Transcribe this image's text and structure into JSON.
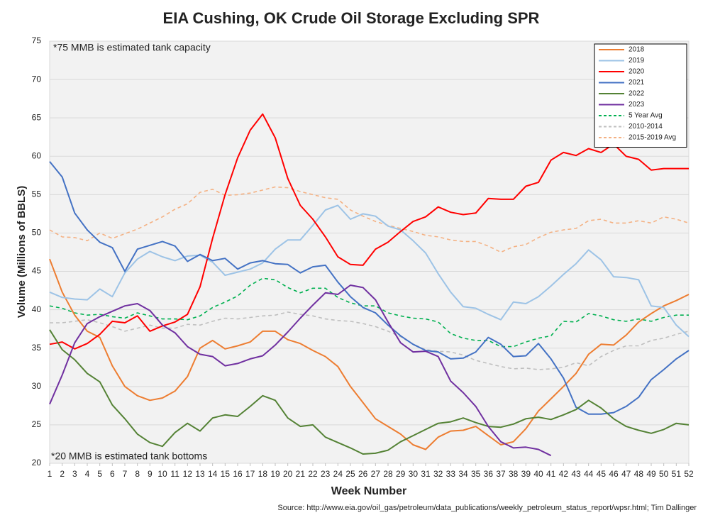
{
  "chart_data": {
    "type": "line",
    "title": "EIA Cushing, OK Crude Oil Storage Excluding SPR",
    "y_label": "Volume (Millions of BBLS)",
    "x_label": "Week Number",
    "source": "Source: http://www.eia.gov/oil_gas/petroleum/data_publications/weekly_petroleum_status_report/wpsr.html; Tim Dallinger",
    "annotations": [
      "*75 MMB is estimated tank capacity",
      "*20 MMB is estimated tank bottoms"
    ],
    "legend": "upper right",
    "grid": true,
    "x": [
      1,
      2,
      3,
      4,
      5,
      6,
      7,
      8,
      9,
      10,
      11,
      12,
      13,
      14,
      15,
      16,
      17,
      18,
      19,
      20,
      21,
      22,
      23,
      24,
      25,
      26,
      27,
      28,
      29,
      30,
      31,
      32,
      33,
      34,
      35,
      36,
      37,
      38,
      39,
      40,
      41,
      42,
      43,
      44,
      45,
      46,
      47,
      48,
      49,
      50,
      51,
      52
    ],
    "xlim": [
      1,
      52
    ],
    "xticks": [
      1,
      2,
      3,
      4,
      5,
      6,
      7,
      8,
      9,
      10,
      11,
      12,
      13,
      14,
      15,
      16,
      17,
      18,
      19,
      20,
      21,
      22,
      23,
      24,
      25,
      26,
      27,
      28,
      29,
      30,
      31,
      32,
      33,
      34,
      35,
      36,
      37,
      38,
      39,
      40,
      41,
      42,
      43,
      44,
      45,
      46,
      47,
      48,
      49,
      50,
      51,
      52
    ],
    "ylim": [
      20,
      75
    ],
    "yticks": [
      20,
      25,
      30,
      35,
      40,
      45,
      50,
      55,
      60,
      65,
      70,
      75
    ],
    "series": [
      {
        "name": "2018",
        "color": "#ed7d31",
        "dash": false,
        "values": [
          46.6,
          42.3,
          39.3,
          37.2,
          36.4,
          32.7,
          30.0,
          28.8,
          28.2,
          28.5,
          29.4,
          31.3,
          35.0,
          36.0,
          34.9,
          35.3,
          35.8,
          37.2,
          37.2,
          36.1,
          35.6,
          34.7,
          33.9,
          32.6,
          30.0,
          27.9,
          25.8,
          24.8,
          23.8,
          22.4,
          21.8,
          23.4,
          24.2,
          24.3,
          24.8,
          23.6,
          22.4,
          22.8,
          24.5,
          26.8,
          28.4,
          30.0,
          31.7,
          34.2,
          35.5,
          35.4,
          36.7,
          38.4,
          39.5,
          40.5,
          41.2,
          42.0
        ]
      },
      {
        "name": "2019",
        "color": "#9dc3e6",
        "dash": false,
        "values": [
          42.3,
          41.6,
          41.4,
          41.3,
          42.7,
          41.7,
          44.8,
          46.6,
          47.6,
          46.9,
          46.4,
          47.0,
          47.1,
          46.2,
          44.5,
          44.9,
          45.3,
          46.1,
          47.9,
          49.1,
          49.1,
          51.0,
          53.0,
          53.6,
          51.8,
          52.5,
          52.2,
          50.9,
          50.4,
          49.0,
          47.4,
          44.7,
          42.3,
          40.4,
          40.2,
          39.4,
          38.7,
          41.0,
          40.8,
          41.7,
          43.1,
          44.6,
          46.0,
          47.8,
          46.5,
          44.3,
          44.2,
          43.9,
          40.5,
          40.3,
          38.0,
          36.5
        ]
      },
      {
        "name": "2020",
        "color": "#ff0000",
        "dash": false,
        "values": [
          35.5,
          35.8,
          34.9,
          35.6,
          36.8,
          38.5,
          38.3,
          39.2,
          37.2,
          37.9,
          38.4,
          39.4,
          43.0,
          49.3,
          55.0,
          59.8,
          63.4,
          65.5,
          62.4,
          57.1,
          53.6,
          51.8,
          49.5,
          46.9,
          45.9,
          45.8,
          47.9,
          48.8,
          50.2,
          51.5,
          52.1,
          53.4,
          52.7,
          52.4,
          52.6,
          54.5,
          54.4,
          54.4,
          56.1,
          56.6,
          59.5,
          60.5,
          60.1,
          61.0,
          60.5,
          61.6,
          60.0,
          59.6,
          58.2,
          58.4,
          58.4,
          58.4
        ]
      },
      {
        "name": "2021",
        "color": "#4472c4",
        "dash": false,
        "values": [
          59.3,
          57.3,
          52.6,
          50.4,
          48.8,
          48.1,
          45.0,
          47.9,
          48.4,
          48.9,
          48.3,
          46.3,
          47.2,
          46.4,
          46.7,
          45.3,
          46.1,
          46.4,
          46.0,
          45.9,
          44.8,
          45.6,
          45.8,
          43.6,
          41.7,
          40.3,
          39.6,
          38.0,
          36.6,
          35.5,
          34.7,
          34.5,
          33.6,
          33.7,
          34.5,
          36.4,
          35.5,
          33.9,
          34.0,
          35.6,
          33.6,
          31.1,
          27.3,
          26.4,
          26.4,
          26.6,
          27.4,
          28.6,
          30.9,
          32.2,
          33.6,
          34.7
        ]
      },
      {
        "name": "2022",
        "color": "#548235",
        "dash": false,
        "values": [
          37.4,
          34.8,
          33.5,
          31.7,
          30.6,
          27.6,
          25.8,
          23.8,
          22.7,
          22.2,
          24.0,
          25.2,
          24.2,
          25.9,
          26.3,
          26.1,
          27.4,
          28.8,
          28.2,
          25.9,
          24.8,
          25.0,
          23.4,
          22.7,
          22.0,
          21.2,
          21.3,
          21.7,
          22.8,
          23.6,
          24.4,
          25.2,
          25.4,
          25.9,
          25.3,
          24.8,
          24.7,
          25.1,
          25.8,
          26.0,
          25.7,
          26.3,
          27.0,
          28.2,
          27.2,
          25.8,
          24.8,
          24.3,
          23.9,
          24.4,
          25.2,
          25.0
        ]
      },
      {
        "name": "2023",
        "color": "#7030a0",
        "dash": false,
        "values": [
          27.7,
          31.5,
          35.7,
          38.2,
          39.1,
          39.8,
          40.5,
          40.8,
          39.9,
          38.0,
          37.0,
          35.2,
          34.2,
          33.9,
          32.7,
          33.0,
          33.6,
          34.0,
          35.4,
          37.1,
          38.9,
          40.6,
          42.2,
          42.0,
          43.2,
          42.9,
          41.3,
          38.4,
          35.7,
          34.5,
          34.6,
          33.9,
          30.7,
          29.2,
          27.4,
          24.8,
          22.8,
          22.0,
          22.1,
          21.8,
          21.0,
          null,
          null,
          null,
          null,
          null,
          null,
          null,
          null,
          null,
          null,
          null
        ]
      },
      {
        "name": "5 Year Avg",
        "color": "#00b050",
        "dash": true,
        "values": [
          40.5,
          40.2,
          39.6,
          39.3,
          39.4,
          39.1,
          38.9,
          39.6,
          39.2,
          38.8,
          38.8,
          38.7,
          39.2,
          40.3,
          41.0,
          41.8,
          43.2,
          44.1,
          43.9,
          42.9,
          42.2,
          42.8,
          42.8,
          41.6,
          40.9,
          40.5,
          40.5,
          39.6,
          39.2,
          38.9,
          38.8,
          38.4,
          36.9,
          36.3,
          36.0,
          36.0,
          35.2,
          35.2,
          35.8,
          36.3,
          36.6,
          38.5,
          38.4,
          39.5,
          39.2,
          38.7,
          38.5,
          38.8,
          38.5,
          39.0,
          39.3,
          39.3
        ]
      },
      {
        "name": "2010-2014",
        "color": "#bfbfbf",
        "dash": true,
        "values": [
          38.3,
          38.3,
          38.5,
          38.7,
          38.3,
          37.8,
          37.2,
          37.6,
          38.0,
          37.6,
          37.6,
          38.1,
          38.0,
          38.5,
          38.9,
          38.8,
          39.0,
          39.2,
          39.3,
          39.7,
          39.4,
          39.2,
          38.8,
          38.6,
          38.5,
          38.2,
          37.8,
          37.2,
          36.5,
          35.5,
          34.8,
          34.6,
          34.5,
          34.1,
          33.4,
          33.0,
          32.6,
          32.3,
          32.4,
          32.2,
          32.3,
          32.5,
          33.1,
          32.7,
          33.9,
          34.7,
          35.3,
          35.3,
          36.0,
          36.3,
          36.8,
          37.2
        ]
      },
      {
        "name": "2015-2019 Avg",
        "color": "#f4b183",
        "dash": true,
        "values": [
          50.4,
          49.5,
          49.4,
          49.0,
          50.0,
          49.3,
          49.9,
          50.5,
          51.3,
          52.1,
          53.1,
          53.8,
          55.3,
          55.7,
          54.9,
          55.0,
          55.2,
          55.6,
          56.0,
          55.9,
          55.4,
          55.0,
          54.6,
          54.4,
          53.0,
          52.2,
          51.5,
          51.0,
          50.6,
          50.2,
          49.7,
          49.5,
          49.1,
          48.9,
          48.9,
          48.3,
          47.5,
          48.2,
          48.5,
          49.4,
          50.1,
          50.4,
          50.6,
          51.6,
          51.8,
          51.3,
          51.3,
          51.6,
          51.3,
          52.1,
          51.8,
          51.3
        ]
      }
    ]
  }
}
